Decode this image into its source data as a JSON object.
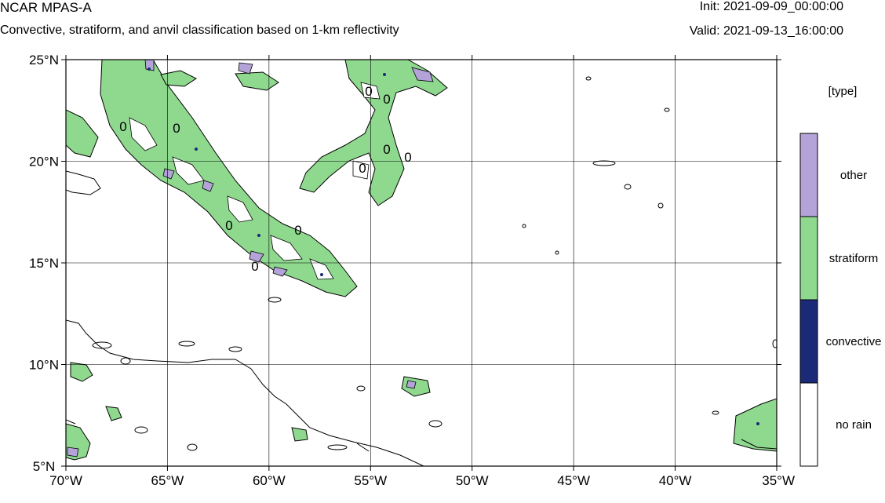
{
  "header": {
    "model": "NCAR MPAS-A",
    "description": "Convective, stratiform, and anvil classification based on 1-km reflectivity",
    "init": "Init: 2021-09-09_00:00:00",
    "valid": "Valid: 2021-09-13_16:00:00"
  },
  "map": {
    "lon_range": [
      -70,
      -35
    ],
    "lat_range": [
      5,
      25
    ],
    "lon_ticks": [
      {
        "value": -70,
        "label": "70°W"
      },
      {
        "value": -65,
        "label": "65°W"
      },
      {
        "value": -60,
        "label": "60°W"
      },
      {
        "value": -55,
        "label": "55°W"
      },
      {
        "value": -50,
        "label": "50°W"
      },
      {
        "value": -45,
        "label": "45°W"
      },
      {
        "value": -40,
        "label": "40°W"
      },
      {
        "value": -35,
        "label": "35°W"
      }
    ],
    "lat_ticks": [
      {
        "value": 25,
        "label": "25°N"
      },
      {
        "value": 20,
        "label": "20°N"
      },
      {
        "value": 15,
        "label": "15°N"
      },
      {
        "value": 10,
        "label": "10°N"
      },
      {
        "value": 5,
        "label": "5°N"
      }
    ],
    "grid": true,
    "contour_labels": [
      "0",
      "0",
      "0",
      "0",
      "0",
      "0",
      "0",
      "0",
      "0",
      "0"
    ]
  },
  "legend": {
    "title": "[type]",
    "placement": "right",
    "items": [
      {
        "label": "other",
        "color": "#b3a3d8"
      },
      {
        "label": "stratiform",
        "color": "#8fd98f"
      },
      {
        "label": "convective",
        "color": "#1b2a78"
      },
      {
        "label": "no rain",
        "color": "#ffffff"
      }
    ]
  },
  "colors": {
    "stratiform": "#8fd98f",
    "other": "#b3a3d8",
    "convective": "#1b2a78",
    "coast": "#000000"
  }
}
